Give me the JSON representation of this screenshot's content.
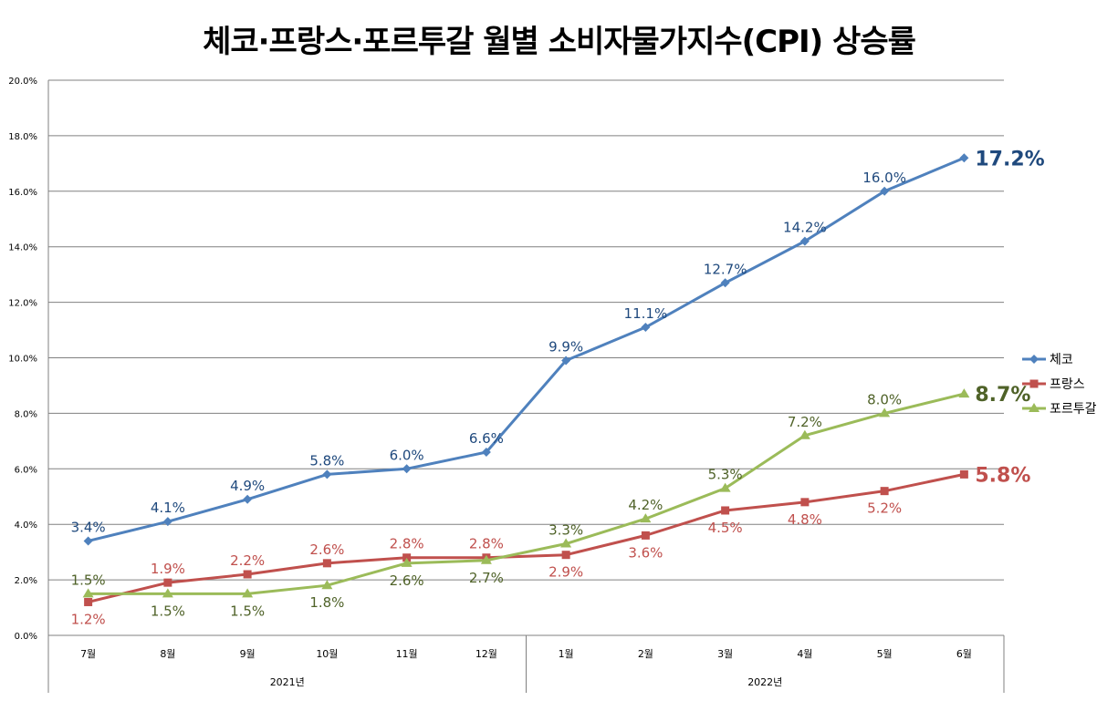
{
  "title": "체코·프랑스·포르투갈 월별 소비자물가지수(CPI) 상승률",
  "chart_data": {
    "type": "line",
    "title": "체코·프랑스·포르투갈 월별 소비자물가지수(CPI) 상승률",
    "categories": [
      "7월",
      "8월",
      "9월",
      "10월",
      "11월",
      "12월",
      "1월",
      "2월",
      "3월",
      "4월",
      "5월",
      "6월"
    ],
    "year_groups": [
      {
        "label": "2021년",
        "months": 6
      },
      {
        "label": "2022년",
        "months": 6
      }
    ],
    "ylim": [
      0,
      20
    ],
    "yticks": [
      "0.0%",
      "2.0%",
      "4.0%",
      "6.0%",
      "8.0%",
      "10.0%",
      "12.0%",
      "14.0%",
      "16.0%",
      "18.0%",
      "20.0%"
    ],
    "grid": true,
    "legend_position": "right",
    "series": [
      {
        "name": "체코",
        "color": "#4F81BD",
        "label_color": "#1F497D",
        "marker": "diamond",
        "values": [
          3.4,
          4.1,
          4.9,
          5.8,
          6.0,
          6.6,
          9.9,
          11.1,
          12.7,
          14.2,
          16.0,
          17.2
        ],
        "labels": [
          "3.4%",
          "4.1%",
          "4.9%",
          "5.8%",
          "6.0%",
          "6.6%",
          "9.9%",
          "11.1%",
          "12.7%",
          "14.2%",
          "16.0%",
          ""
        ],
        "end_label": "17.2%",
        "label_pos": "above"
      },
      {
        "name": "프랑스",
        "color": "#C0504D",
        "label_color": "#C0504D",
        "marker": "square",
        "values": [
          1.2,
          1.9,
          2.2,
          2.6,
          2.8,
          2.8,
          2.9,
          3.6,
          4.5,
          4.8,
          5.2,
          5.8
        ],
        "labels": [
          "1.2%",
          "1.9%",
          "2.2%",
          "2.6%",
          "2.8%",
          "2.8%",
          "2.9%",
          "3.6%",
          "4.5%",
          "4.8%",
          "5.2%",
          ""
        ],
        "end_label": "5.8%",
        "label_pos": [
          "below",
          "above",
          "above",
          "above",
          "above",
          "above",
          "below",
          "below",
          "below",
          "below",
          "below",
          "none"
        ]
      },
      {
        "name": "포르투갈",
        "color": "#9BBB59",
        "label_color": "#4F6228",
        "marker": "triangle",
        "values": [
          1.5,
          1.5,
          1.5,
          1.8,
          2.6,
          2.7,
          3.3,
          4.2,
          5.3,
          7.2,
          8.0,
          8.7
        ],
        "labels": [
          "1.5%",
          "1.5%",
          "1.5%",
          "1.8%",
          "2.6%",
          "2.7%",
          "3.3%",
          "4.2%",
          "5.3%",
          "7.2%",
          "8.0%",
          ""
        ],
        "end_label": "8.7%",
        "label_pos": [
          "above",
          "below",
          "below",
          "below",
          "below",
          "below",
          "above",
          "above",
          "above",
          "above",
          "above",
          "none"
        ]
      }
    ]
  }
}
